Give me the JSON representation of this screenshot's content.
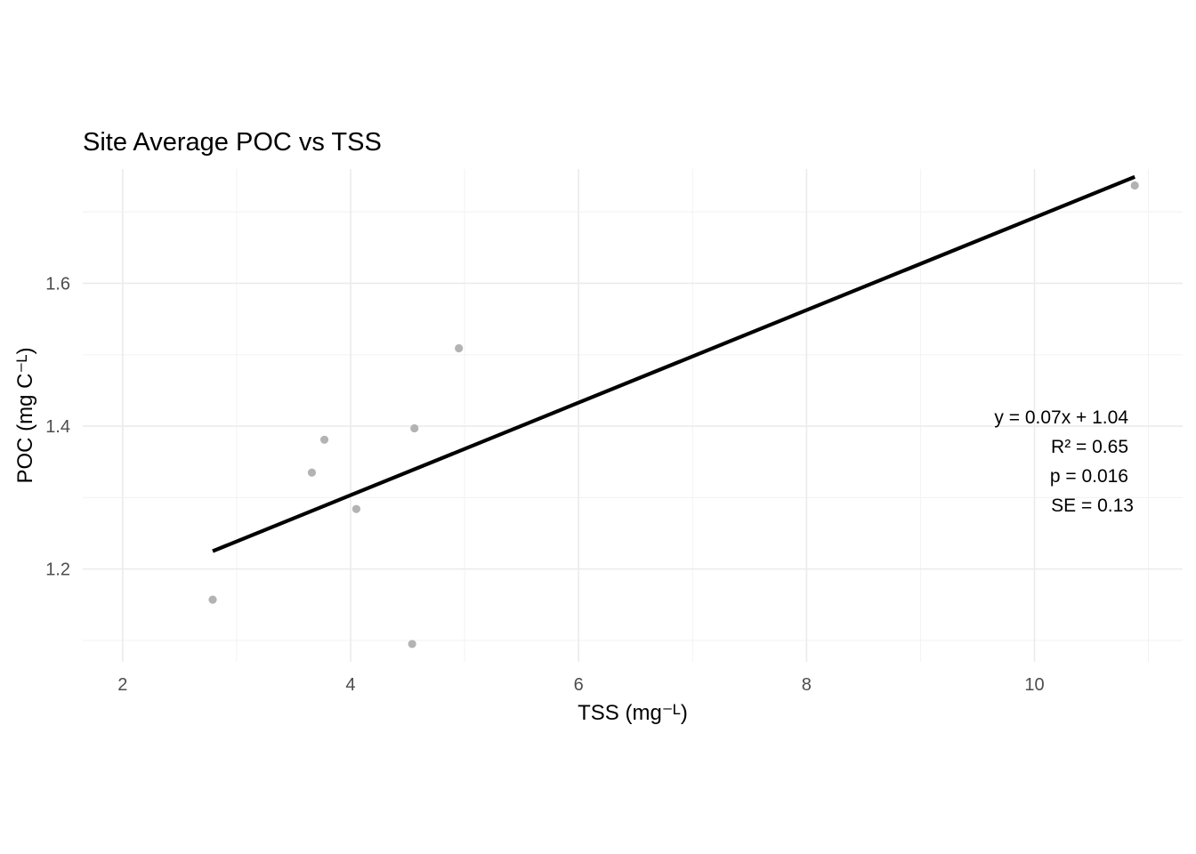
{
  "chart_data": {
    "type": "scatter",
    "title": "Site Average POC vs TSS",
    "xlabel": "TSS (mg⁻ᴸ)",
    "ylabel": "POC (mg C⁻ᴸ)",
    "xlim": [
      1.65,
      11.3
    ],
    "ylim": [
      1.07,
      1.76
    ],
    "x_ticks": [
      2,
      4,
      6,
      8,
      10
    ],
    "x_tick_labels": [
      "2",
      "4",
      "6",
      "8",
      "10"
    ],
    "y_ticks": [
      1.2,
      1.4,
      1.6
    ],
    "y_tick_labels": [
      "1.2",
      "1.4",
      "1.6"
    ],
    "x_minor_ticks": [
      3,
      5,
      7,
      9,
      11
    ],
    "y_minor_ticks": [
      1.1,
      1.3,
      1.5,
      1.7
    ],
    "grid": true,
    "series": [
      {
        "type": "scatter",
        "color": "#b3b3b3",
        "points": [
          {
            "x": 2.79,
            "y": 1.157
          },
          {
            "x": 3.66,
            "y": 1.335
          },
          {
            "x": 3.77,
            "y": 1.381
          },
          {
            "x": 4.05,
            "y": 1.284
          },
          {
            "x": 4.54,
            "y": 1.095
          },
          {
            "x": 4.56,
            "y": 1.397
          },
          {
            "x": 4.95,
            "y": 1.509
          },
          {
            "x": 10.88,
            "y": 1.737
          }
        ]
      },
      {
        "type": "line",
        "color": "#000000",
        "x": [
          2.79,
          10.88
        ],
        "y": [
          1.225,
          1.749
        ]
      }
    ],
    "annotations": [
      "y = 0.07x + 1.04",
      "R² = 0.65",
      "p = 0.016",
      "SE = 0.13"
    ]
  }
}
